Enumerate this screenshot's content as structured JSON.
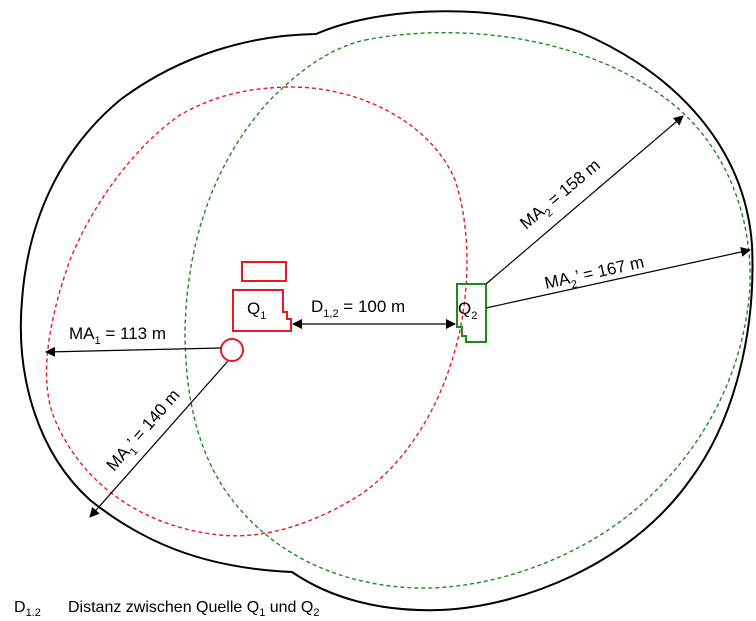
{
  "labels": {
    "q1_main": "Q",
    "q1_sub": "1",
    "q2_main": "Q",
    "q2_sub": "2",
    "d12_main": "D",
    "d12_sub": "1,2",
    "d12_rest": " = 100 m",
    "ma1_main": "MA",
    "ma1_sub": "1",
    "ma1_rest": " = 113 m",
    "ma1p_main": "MA",
    "ma1p_sub": "1",
    "ma1p_rest": "’ = 140 m",
    "ma2_main": "MA",
    "ma2_sub": "2",
    "ma2_rest": " = 158 m",
    "ma2p_main": "MA",
    "ma2p_sub": "2",
    "ma2p_rest": "’ = 167 m"
  },
  "legend": {
    "symbol_main": "D",
    "symbol_sub": "1.2",
    "text_1": "Distanz zwischen Quelle Q",
    "text_1_sub": "1",
    "text_2": " und Q",
    "text_2_sub": "2"
  },
  "colors": {
    "source_1": "#e8191f",
    "source_2": "#1c8a1c",
    "envelope": "#000000"
  }
}
